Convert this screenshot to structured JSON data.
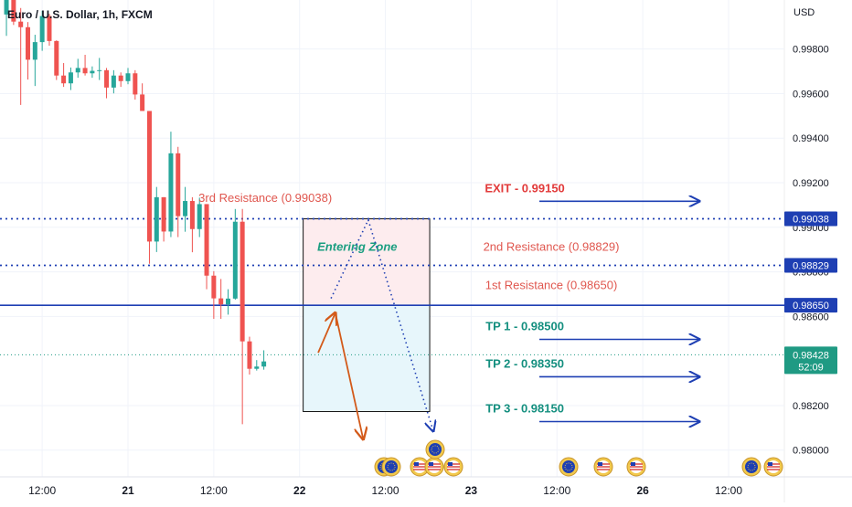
{
  "header": {
    "symbol_title": "Euro / U.S. Dollar, 1h, FXCM",
    "currency": "USD"
  },
  "colors": {
    "up_candle": "#26a69a",
    "down_candle": "#ef5350",
    "level_line": "#1e3fb3",
    "resistance_text": "#e0574f",
    "tp_text": "#148f7f",
    "exit_text": "#e23b3b",
    "arrow": "#1e3fb3",
    "trade_arrow": "#d35a1a",
    "entry_zone_fill": "#fdecee",
    "target_zone_fill": "#e7f6fb",
    "current_price_bg": "#1f9a83"
  },
  "chart_data": {
    "type": "candlestick",
    "y_axis": {
      "label": "USD",
      "range": [
        0.9788,
        1.0002
      ],
      "ticks": [
        0.998,
        0.996,
        0.994,
        0.992,
        0.99,
        0.988,
        0.986,
        0.982,
        0.98
      ],
      "tick_labels": [
        "0.99800",
        "0.99600",
        "0.99400",
        "0.99200",
        "0.99000",
        "0.98800",
        "0.98600",
        "0.98200",
        "0.98000"
      ]
    },
    "x_axis": {
      "ticks": [
        {
          "label": "12:00",
          "hour": 12
        },
        {
          "label": "21",
          "hour": 24
        },
        {
          "label": "12:00",
          "hour": 36
        },
        {
          "label": "22",
          "hour": 48
        },
        {
          "label": "12:00",
          "hour": 60
        },
        {
          "label": "23",
          "hour": 72
        },
        {
          "label": "12:00",
          "hour": 84
        },
        {
          "label": "26",
          "hour": 96
        },
        {
          "label": "12:00",
          "hour": 108
        }
      ],
      "range_hours": [
        6.1,
        115.8
      ]
    },
    "candles": [
      [
        0.99955,
        1.00021,
        0.99859,
        1.00021
      ],
      [
        1.00021,
        1.00021,
        0.99908,
        0.99923
      ],
      [
        0.99923,
        0.99984,
        0.99549,
        0.99898
      ],
      [
        0.99898,
        0.99921,
        0.99663,
        0.99752
      ],
      [
        0.99752,
        0.99864,
        0.99634,
        0.99831
      ],
      [
        0.99831,
        0.99972,
        0.99792,
        0.99948
      ],
      [
        0.99948,
        0.99958,
        0.99815,
        0.99836
      ],
      [
        0.99836,
        0.99839,
        0.99661,
        0.99681
      ],
      [
        0.99681,
        0.99737,
        0.9963,
        0.99646
      ],
      [
        0.99646,
        0.99717,
        0.99616,
        0.99695
      ],
      [
        0.99695,
        0.99756,
        0.99671,
        0.99715
      ],
      [
        0.99715,
        0.99774,
        0.99681,
        0.99691
      ],
      [
        0.99691,
        0.99722,
        0.99671,
        0.99702
      ],
      [
        0.99702,
        0.9976,
        0.99661,
        0.99705
      ],
      [
        0.99705,
        0.99715,
        0.99579,
        0.99627
      ],
      [
        0.99627,
        0.99705,
        0.99601,
        0.99681
      ],
      [
        0.99681,
        0.99695,
        0.9963,
        0.99656
      ],
      [
        0.99656,
        0.99715,
        0.99642,
        0.99691
      ],
      [
        0.99691,
        0.99705,
        0.99573,
        0.99596
      ],
      [
        0.99596,
        0.99646,
        0.99522,
        0.99522
      ],
      [
        0.99522,
        0.99522,
        0.98836,
        0.98936
      ],
      [
        0.98936,
        0.99181,
        0.98889,
        0.99135
      ],
      [
        0.99135,
        0.99135,
        0.98936,
        0.98981
      ],
      [
        0.98981,
        0.99429,
        0.98956,
        0.99332
      ],
      [
        0.99332,
        0.99361,
        0.98956,
        0.9905
      ],
      [
        0.9905,
        0.99181,
        0.9898,
        0.99118
      ],
      [
        0.99118,
        0.99135,
        0.98888,
        0.98992
      ],
      [
        0.98992,
        0.99133,
        0.98956,
        0.99104
      ],
      [
        0.99104,
        0.99104,
        0.98722,
        0.98783
      ],
      [
        0.98783,
        0.98803,
        0.98589,
        0.98681
      ],
      [
        0.98681,
        0.98768,
        0.98589,
        0.98654
      ],
      [
        0.98654,
        0.98722,
        0.98608,
        0.9868
      ],
      [
        0.9868,
        0.99082,
        0.98675,
        0.99025
      ],
      [
        0.99025,
        0.99082,
        0.98116,
        0.98488
      ],
      [
        0.98488,
        0.98509,
        0.98339,
        0.98365
      ],
      [
        0.98365,
        0.98404,
        0.98357,
        0.98375
      ],
      [
        0.98375,
        0.98448,
        0.98361,
        0.98398
      ]
    ],
    "current_price": {
      "value": 0.98428,
      "label": "0.98428",
      "countdown": "52:09"
    },
    "horizontal_levels": [
      {
        "value": 0.99038,
        "label": "0.99038",
        "style": "dotted"
      },
      {
        "value": 0.98829,
        "label": "0.98829",
        "style": "dotted"
      },
      {
        "value": 0.9865,
        "label": "0.98650",
        "style": "solid"
      }
    ],
    "zones": [
      {
        "name": "Entering Zone",
        "from_hour": 48.5,
        "to_hour": 66.2,
        "top": 0.99038,
        "bottom": 0.9865
      },
      {
        "name": "",
        "from_hour": 48.5,
        "to_hour": 66.2,
        "top": 0.9865,
        "bottom": 0.98173
      }
    ],
    "annotations": [
      {
        "text": "3rd Resistance (0.99038)",
        "hour": 43.2,
        "price": 0.99114,
        "kind": "resistance"
      },
      {
        "text": "2nd Resistance (0.98829)",
        "hour": 83.2,
        "price": 0.98895,
        "kind": "resistance"
      },
      {
        "text": "1st Resistance (0.98650)",
        "hour": 83.2,
        "price": 0.98723,
        "kind": "resistance"
      },
      {
        "text": "EXIT - 0.99150",
        "hour": 79.5,
        "price": 0.99158,
        "kind": "exit"
      },
      {
        "text": "TP 1 - 0.98500",
        "hour": 79.5,
        "price": 0.98538,
        "kind": "tp"
      },
      {
        "text": "TP 2 - 0.98350",
        "hour": 79.5,
        "price": 0.9837,
        "kind": "tp"
      },
      {
        "text": "TP 3 - 0.98150",
        "hour": 79.5,
        "price": 0.98169,
        "kind": "tp"
      }
    ],
    "projection_path": [
      {
        "hour": 52.4,
        "price": 0.98681
      },
      {
        "hour": 57.6,
        "price": 0.99033
      },
      {
        "hour": 66.7,
        "price": 0.98085
      }
    ],
    "trade_path": [
      {
        "hour": 50.6,
        "price": 0.98437
      },
      {
        "hour": 53.0,
        "price": 0.98616
      },
      {
        "hour": 56.9,
        "price": 0.98049
      }
    ]
  }
}
